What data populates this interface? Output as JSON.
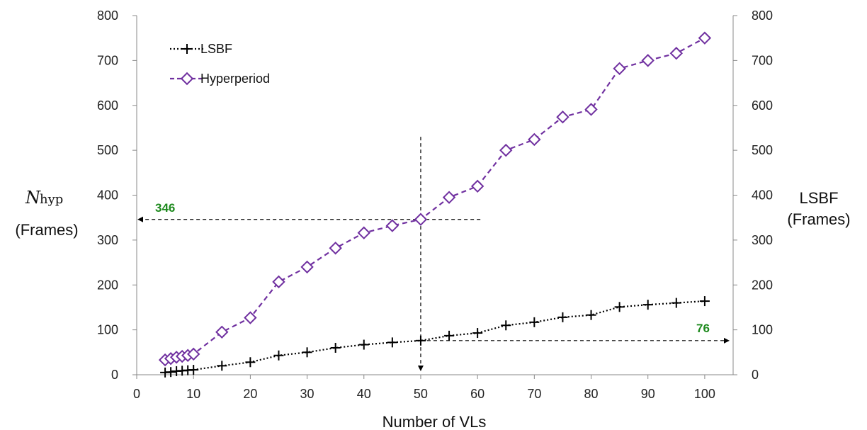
{
  "chart_data": {
    "type": "line",
    "xlabel": "Number of VLs",
    "ylabel_left": {
      "symbol": "N",
      "subscript": "hyp",
      "unit": "(Frames)"
    },
    "ylabel_right": {
      "line1": "LSBF",
      "line2": "(Frames)"
    },
    "xlim": [
      0,
      105
    ],
    "ylim": [
      0,
      800
    ],
    "x_ticks": [
      0,
      10,
      20,
      30,
      40,
      50,
      60,
      70,
      80,
      90,
      100
    ],
    "y_ticks": [
      0,
      100,
      200,
      300,
      400,
      500,
      600,
      700,
      800
    ],
    "legend_position": "top-left",
    "series": [
      {
        "name": "LSBF",
        "color": "#000000",
        "line_style": "dotted",
        "marker": "plus",
        "x": [
          5,
          6,
          7,
          8,
          9,
          10,
          15,
          20,
          25,
          30,
          35,
          40,
          45,
          50,
          55,
          60,
          65,
          70,
          75,
          80,
          85,
          90,
          95,
          100
        ],
        "values": [
          5,
          6,
          8,
          9,
          10,
          11,
          20,
          28,
          43,
          50,
          60,
          67,
          72,
          76,
          87,
          93,
          110,
          117,
          128,
          133,
          151,
          156,
          160,
          164
        ]
      },
      {
        "name": "Hyperperiod",
        "color": "#7030a0",
        "line_style": "dashed",
        "marker": "diamond",
        "x": [
          5,
          6,
          7,
          8,
          9,
          10,
          15,
          20,
          25,
          30,
          35,
          40,
          45,
          50,
          55,
          60,
          65,
          70,
          75,
          80,
          85,
          90,
          95,
          100
        ],
        "values": [
          33,
          36,
          39,
          41,
          43,
          46,
          95,
          127,
          207,
          240,
          282,
          316,
          332,
          346,
          395,
          420,
          500,
          524,
          574,
          591,
          682,
          700,
          716,
          750
        ]
      }
    ],
    "annotations": [
      {
        "label": "346",
        "color": "#1e8a1e"
      },
      {
        "label": "76",
        "color": "#1e8a1e"
      }
    ],
    "reference_lines": {
      "vertical_at_x": 50,
      "horizontal_hyperperiod_y": 346,
      "horizontal_lsbf_y": 76
    }
  }
}
